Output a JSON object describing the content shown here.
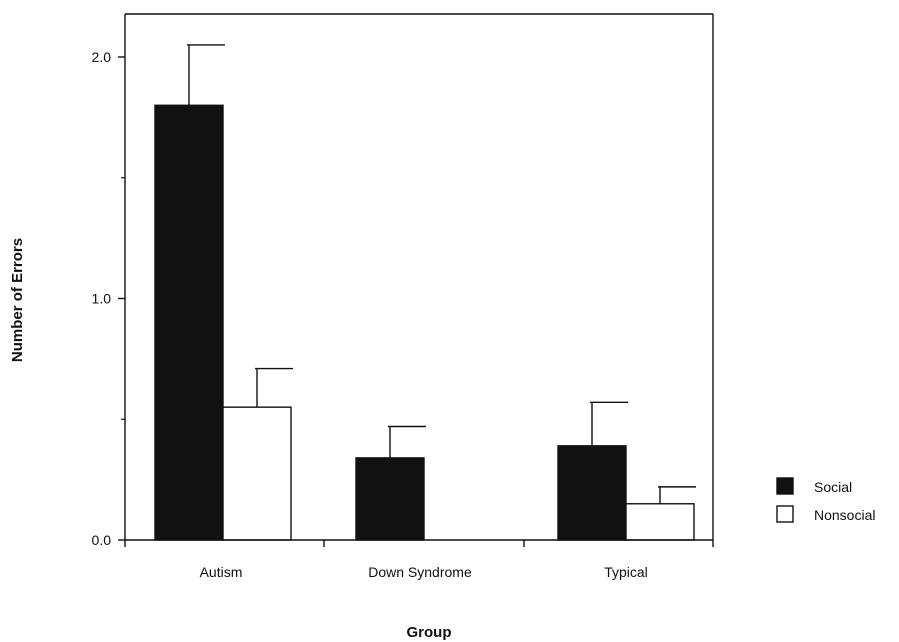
{
  "chart_data": {
    "type": "bar",
    "xlabel": "Group",
    "ylabel": "Number of Errors",
    "categories": [
      "Autism",
      "Down Syndrome",
      "Typical"
    ],
    "series": [
      {
        "name": "Social",
        "color": "#111111",
        "values": [
          1.8,
          0.34,
          0.39
        ],
        "error": [
          0.25,
          0.13,
          0.18
        ]
      },
      {
        "name": "Nonsocial",
        "color": "#ffffff",
        "values": [
          0.55,
          0.0,
          0.15
        ],
        "error": [
          0.16,
          0.0,
          0.07
        ]
      }
    ],
    "ylim": [
      0,
      2.2
    ],
    "yticks": [
      0,
      1,
      2
    ],
    "ytick_labels": [
      "0.0",
      "1.0",
      "2.0"
    ],
    "y_minor_ticks": [
      0.5,
      1.5
    ],
    "grid": false,
    "legend_position": "right"
  }
}
